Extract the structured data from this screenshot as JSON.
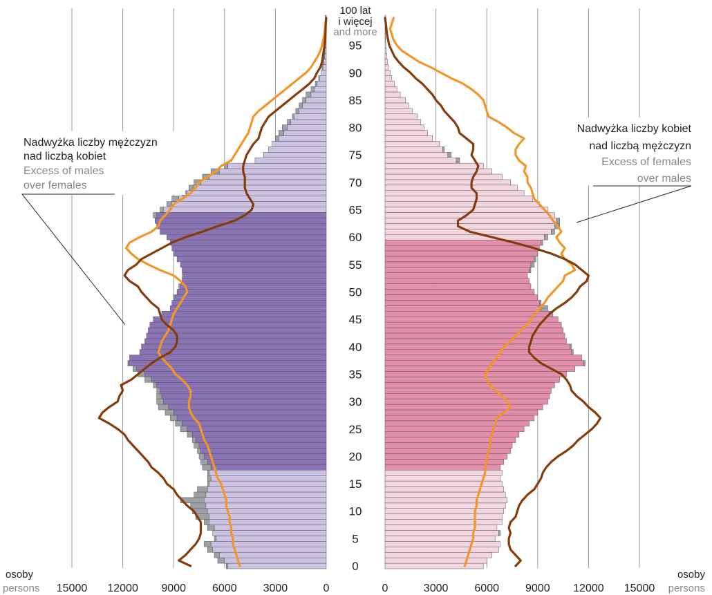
{
  "chart_data": {
    "type": "bar",
    "subtype": "population-pyramid",
    "age_axis": {
      "ticks": [
        "0",
        "5",
        "10",
        "15",
        "20",
        "25",
        "30",
        "35",
        "40",
        "45",
        "50",
        "55",
        "60",
        "65",
        "70",
        "75",
        "80",
        "85",
        "90",
        "95"
      ],
      "top_label": [
        "100 lat",
        "i więcej",
        "and more"
      ]
    },
    "x_axis": {
      "range": [
        0,
        15000
      ],
      "ticks_left": [
        "15000",
        "12000",
        "9000",
        "6000",
        "3000",
        "0"
      ],
      "ticks_right": [
        "0",
        "3000",
        "6000",
        "9000",
        "12000",
        "15000"
      ],
      "label_pl": "osoby",
      "label_en": "persons"
    },
    "grid": true,
    "colors": {
      "males_working_age": "#8a73b4",
      "males_other": "#cbc3e1",
      "females_working_age": "#e38fac",
      "females_other": "#f2d7e0",
      "excess": "#9da1a5",
      "bar_edge": "#555555",
      "line_dark": "#843c0c",
      "line_light": "#f0962a",
      "grid": "#999999",
      "text_dark": "#222222",
      "text_grey": "#888888"
    },
    "annotations": {
      "left": {
        "pl_1": "Nadwyżka liczby mężczyzn",
        "pl_2": "nad liczbą kobiet",
        "en_1": "Excess of males",
        "en_2": "over females"
      },
      "right": {
        "pl_1": "Nadwyżka liczby kobiet",
        "pl_2": "nad liczbą mężczyzn",
        "en_1": "Excess of females",
        "en_2": "over males"
      }
    },
    "working_age": {
      "males": [
        18,
        64
      ],
      "females": [
        18,
        59
      ]
    },
    "males": [
      5900,
      6400,
      6600,
      7000,
      7200,
      6600,
      6700,
      7000,
      7200,
      7700,
      7900,
      8000,
      8600,
      7800,
      7600,
      7000,
      7000,
      7000,
      7300,
      7400,
      7500,
      7600,
      7800,
      7900,
      8200,
      8600,
      8900,
      9200,
      9500,
      9900,
      10000,
      10000,
      10000,
      10200,
      10700,
      11100,
      11400,
      11700,
      11600,
      11000,
      10900,
      10700,
      10600,
      10500,
      10400,
      10200,
      9700,
      9200,
      9100,
      9000,
      8800,
      8700,
      8500,
      8500,
      8500,
      8600,
      8800,
      9000,
      9100,
      9200,
      9400,
      9800,
      10000,
      10100,
      10200,
      9800,
      9400,
      9100,
      8500,
      8100,
      7800,
      7300,
      6800,
      6000,
      4200,
      3700,
      3400,
      3200,
      3000,
      2800,
      2600,
      2300,
      2000,
      1800,
      1600,
      1400,
      1200,
      900,
      650,
      450,
      300,
      250,
      200,
      150,
      120,
      60,
      40,
      30,
      20,
      10,
      60
    ],
    "females": [
      5800,
      6000,
      6300,
      6700,
      6800,
      6500,
      6800,
      6600,
      6900,
      6900,
      7000,
      7100,
      7200,
      7100,
      7000,
      6900,
      6800,
      6900,
      6800,
      7000,
      7200,
      7400,
      7500,
      7700,
      7900,
      8200,
      8500,
      8800,
      9000,
      9300,
      9600,
      9700,
      9800,
      10000,
      10300,
      10700,
      11200,
      11800,
      11600,
      11100,
      11000,
      10700,
      10600,
      10500,
      10400,
      10200,
      9900,
      9600,
      9200,
      9000,
      8800,
      8600,
      8500,
      8400,
      8600,
      8800,
      8900,
      9000,
      9100,
      9300,
      9600,
      10000,
      10300,
      10300,
      10000,
      9600,
      9100,
      8700,
      8200,
      7800,
      7400,
      6900,
      6300,
      5800,
      4400,
      3900,
      3500,
      3200,
      2800,
      2500,
      2300,
      2100,
      1900,
      1600,
      1400,
      1200,
      900,
      700,
      550,
      400,
      300,
      200,
      150,
      100,
      80,
      50,
      30,
      20,
      10,
      10,
      40
    ],
    "line_dark_males": [
      8000,
      8700,
      8300,
      8000,
      7700,
      7500,
      7400,
      7400,
      7400,
      7600,
      7800,
      8200,
      8500,
      8800,
      9000,
      9400,
      9600,
      9900,
      10300,
      10500,
      10800,
      11100,
      11400,
      11700,
      11900,
      12300,
      12800,
      13400,
      13200,
      12800,
      12300,
      12200,
      12000,
      12100,
      11500,
      11100,
      10700,
      10300,
      9800,
      9200,
      8900,
      8800,
      8800,
      9000,
      9400,
      9700,
      9800,
      9900,
      10300,
      10600,
      10900,
      11100,
      11600,
      11900,
      11700,
      11200,
      10900,
      10300,
      9700,
      9100,
      8300,
      7300,
      6400,
      5400,
      4800,
      4400,
      4300,
      4500,
      4700,
      4800,
      4800,
      4800,
      4900,
      4900,
      4800,
      4700,
      4500,
      4300,
      4000,
      3900,
      3800,
      3600,
      3400,
      3000,
      2600,
      2200,
      1800,
      1400,
      1000,
      700,
      550,
      350,
      250,
      200,
      150,
      100,
      70,
      50,
      40,
      30,
      10
    ],
    "line_light_males": [
      5100,
      5200,
      5300,
      5400,
      5500,
      5500,
      5600,
      5600,
      5700,
      5700,
      5800,
      5900,
      5900,
      6000,
      6100,
      6200,
      6400,
      6500,
      6600,
      6700,
      6800,
      6900,
      7000,
      7200,
      7300,
      7400,
      7500,
      7800,
      8000,
      8100,
      8100,
      8000,
      8000,
      8200,
      8500,
      8900,
      9100,
      9400,
      9700,
      9900,
      9800,
      9700,
      9500,
      9300,
      9200,
      9100,
      9000,
      8800,
      8600,
      8400,
      8200,
      8300,
      8600,
      9000,
      9800,
      10500,
      11100,
      11500,
      11800,
      11600,
      11000,
      10300,
      9900,
      9800,
      9500,
      9200,
      9000,
      8500,
      8000,
      7700,
      7500,
      7000,
      6500,
      6200,
      5600,
      5400,
      5200,
      5000,
      4800,
      4600,
      4500,
      4400,
      4300,
      4000,
      3600,
      3200,
      2800,
      2400,
      2000,
      1600,
      1200,
      900,
      700,
      500,
      350,
      250,
      180,
      120,
      80,
      50,
      0
    ],
    "line_dark_females": [
      7700,
      8000,
      7700,
      7400,
      7300,
      7300,
      7400,
      7300,
      7400,
      7700,
      7800,
      7900,
      8100,
      8400,
      8800,
      9000,
      9200,
      9300,
      9500,
      9800,
      10200,
      10700,
      11100,
      11400,
      11800,
      12200,
      12500,
      12700,
      12400,
      12000,
      11700,
      11300,
      11000,
      10900,
      10700,
      10400,
      9800,
      9200,
      8800,
      8500,
      8500,
      8600,
      8700,
      8900,
      9100,
      9400,
      9700,
      10100,
      10600,
      11000,
      11300,
      11500,
      11900,
      12000,
      11600,
      11200,
      10600,
      9800,
      8800,
      7600,
      6300,
      5000,
      4300,
      4300,
      4800,
      5200,
      5300,
      5400,
      5400,
      5100,
      5100,
      5200,
      5400,
      5500,
      5300,
      5100,
      5200,
      5200,
      4800,
      4400,
      4300,
      4100,
      3800,
      3500,
      3300,
      3000,
      2800,
      2500,
      2200,
      1800,
      1500,
      1100,
      800,
      550,
      400,
      250,
      180,
      120,
      80,
      50,
      0
    ],
    "line_light_females": [
      4700,
      4800,
      4900,
      5000,
      5100,
      5200,
      5200,
      5300,
      5300,
      5300,
      5300,
      5400,
      5400,
      5500,
      5600,
      5700,
      5800,
      5900,
      5900,
      6000,
      6000,
      6100,
      6200,
      6200,
      6300,
      6400,
      6500,
      6600,
      7000,
      7400,
      7200,
      6900,
      6500,
      6200,
      6000,
      5900,
      6100,
      6300,
      6600,
      6800,
      7000,
      7400,
      7700,
      8000,
      8400,
      8600,
      8800,
      9100,
      9400,
      9600,
      9900,
      10200,
      10500,
      10600,
      11200,
      11000,
      10600,
      10400,
      10600,
      10300,
      10100,
      10400,
      10200,
      9900,
      9700,
      9400,
      9100,
      8800,
      8700,
      8600,
      8400,
      8400,
      8200,
      8300,
      7900,
      7700,
      7700,
      7900,
      8200,
      7600,
      7200,
      6700,
      6100,
      6000,
      5900,
      5800,
      5500,
      5100,
      4600,
      3900,
      3300,
      2700,
      2000,
      1500,
      1000,
      700,
      500,
      400,
      300,
      400,
      500
    ]
  }
}
